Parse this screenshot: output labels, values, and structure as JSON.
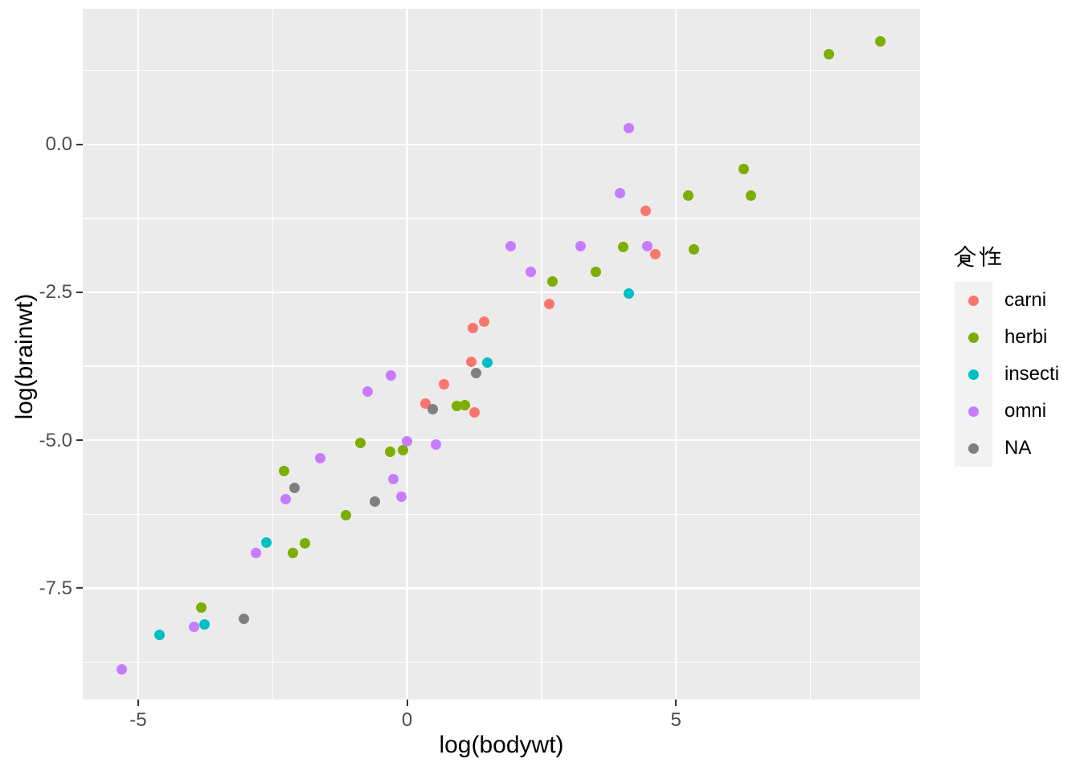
{
  "chart_data": {
    "type": "scatter",
    "title": "",
    "xlabel": "log(bodywt)",
    "ylabel": "log(brainwt)",
    "xlim": [
      -6.03,
      9.54
    ],
    "ylim": [
      -9.38,
      2.29
    ],
    "grid": true,
    "legend_position": "right",
    "x_ticks": {
      "major": [
        -5,
        0,
        5
      ],
      "labels": [
        "-5",
        "0",
        "5"
      ],
      "minor": [
        -2.5,
        2.5,
        7.5
      ]
    },
    "y_ticks": {
      "major": [
        0,
        -2.5,
        -5,
        -7.5
      ],
      "labels": [
        "0.0",
        "-2.5",
        "-5.0",
        "-7.5"
      ],
      "minor": [
        1.25,
        -1.25,
        -3.75,
        -6.25,
        -8.75
      ]
    },
    "series": [
      {
        "name": "carni",
        "color": "#F8766D",
        "points": [
          [
            4.44,
            -1.12
          ],
          [
            4.61,
            -1.85
          ],
          [
            2.65,
            -2.7
          ],
          [
            1.44,
            -2.99
          ],
          [
            1.22,
            -3.11
          ],
          [
            1.19,
            -3.67
          ],
          [
            0.69,
            -4.05
          ],
          [
            0.34,
            -4.38
          ],
          [
            1.25,
            -4.53
          ]
        ]
      },
      {
        "name": "herbi",
        "color": "#7CAE00",
        "points": [
          [
            8.8,
            1.74
          ],
          [
            7.84,
            1.53
          ],
          [
            6.26,
            -0.42
          ],
          [
            6.4,
            -0.86
          ],
          [
            5.23,
            -0.87
          ],
          [
            5.34,
            -1.78
          ],
          [
            4.02,
            -1.74
          ],
          [
            3.51,
            -2.16
          ],
          [
            2.7,
            -2.32
          ],
          [
            1.08,
            -4.4
          ],
          [
            0.92,
            -4.42
          ],
          [
            -0.87,
            -5.05
          ],
          [
            -0.32,
            -5.2
          ],
          [
            -0.08,
            -5.16
          ],
          [
            -2.29,
            -5.52
          ],
          [
            -1.14,
            -6.27
          ],
          [
            -1.9,
            -6.74
          ],
          [
            -2.12,
            -6.91
          ],
          [
            -3.82,
            -7.82
          ]
        ]
      },
      {
        "name": "insecti",
        "color": "#00BFC4",
        "points": [
          [
            4.12,
            -2.52
          ],
          [
            1.5,
            -3.69
          ],
          [
            -2.61,
            -6.73
          ],
          [
            -3.77,
            -8.11
          ],
          [
            -4.61,
            -8.29
          ]
        ]
      },
      {
        "name": "omni",
        "color": "#C77CFF",
        "points": [
          [
            4.13,
            0.28
          ],
          [
            3.96,
            -0.82
          ],
          [
            1.92,
            -1.72
          ],
          [
            3.23,
            -1.72
          ],
          [
            4.46,
            -1.72
          ],
          [
            2.3,
            -2.16
          ],
          [
            -0.3,
            -3.91
          ],
          [
            -0.73,
            -4.17
          ],
          [
            0.0,
            -5.02
          ],
          [
            0.53,
            -5.07
          ],
          [
            -1.61,
            -5.3
          ],
          [
            -0.26,
            -5.66
          ],
          [
            -0.11,
            -5.95
          ],
          [
            -2.26,
            -5.99
          ],
          [
            -2.81,
            -6.91
          ],
          [
            -3.96,
            -8.15
          ],
          [
            -5.3,
            -8.87
          ]
        ]
      },
      {
        "name": "NA",
        "color": "#7F7F7F",
        "points": [
          [
            1.28,
            -3.86
          ],
          [
            0.48,
            -4.47
          ],
          [
            -2.1,
            -5.81
          ],
          [
            -0.6,
            -6.03
          ],
          [
            -3.04,
            -8.02
          ]
        ]
      }
    ]
  },
  "legend": {
    "title": "食性",
    "entries": [
      {
        "label": "carni",
        "color": "#F8766D"
      },
      {
        "label": "herbi",
        "color": "#7CAE00"
      },
      {
        "label": "insecti",
        "color": "#00BFC4"
      },
      {
        "label": "omni",
        "color": "#C77CFF"
      },
      {
        "label": "NA",
        "color": "#7F7F7F"
      }
    ]
  },
  "style": {
    "panel_bg": "#EBEBEB",
    "grid_color": "#FFFFFF",
    "tick_mark_color": "#333333",
    "tick_label_color": "#4D4D4D",
    "axis_title_color": "#000000",
    "legend_key_bg": "#F2F2F2",
    "point_diameter": 13
  }
}
